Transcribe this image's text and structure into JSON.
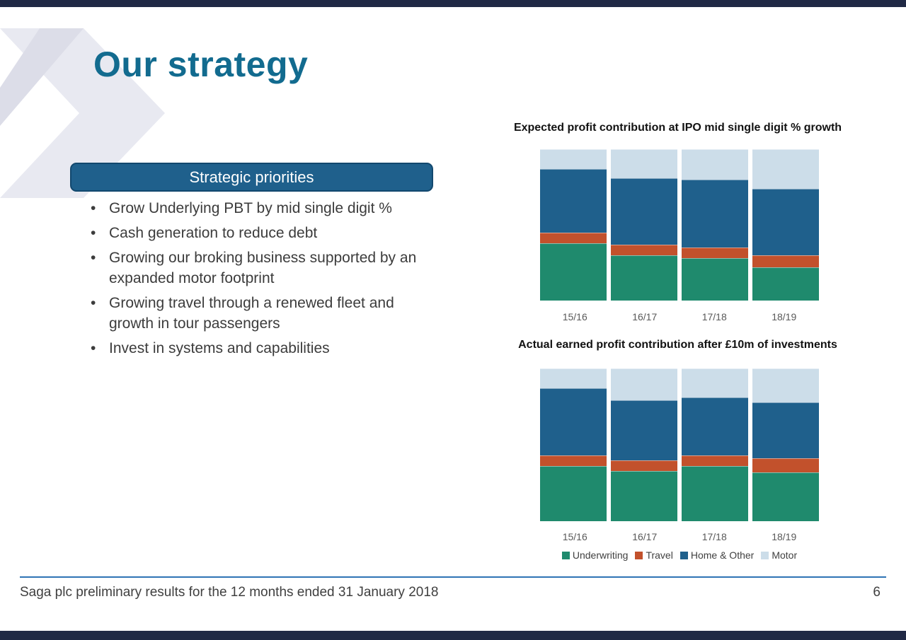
{
  "slide": {
    "title": "Our strategy",
    "footer": "Saga plc preliminary results for the 12 months ended 31 January 2018",
    "page_number": "6"
  },
  "strategic": {
    "header": "Strategic priorities",
    "bullets": [
      "Grow Underlying PBT by mid single digit %",
      "Cash generation to reduce debt",
      "Growing our broking business supported by an expanded motor footprint",
      "Growing travel through a renewed fleet and growth in tour passengers",
      "Invest in systems and capabilities"
    ]
  },
  "colors": {
    "border_navy": "#202945",
    "title_teal": "#126b8f",
    "header_box_blue": "#1f608c",
    "divider_blue": "#2e74b5"
  },
  "chart_data": [
    {
      "type": "bar",
      "stacked": true,
      "title": "Expected profit contribution at IPO mid single digit % growth",
      "categories": [
        "15/16",
        "16/17",
        "17/18",
        "18/19"
      ],
      "ylabel": "",
      "xlabel": "",
      "ylim": [
        0,
        100
      ],
      "grid": false,
      "legend_position": "none",
      "series": [
        {
          "name": "Underwriting",
          "color": "#1f8a6d",
          "values": [
            38,
            30,
            28,
            22
          ]
        },
        {
          "name": "Travel",
          "color": "#c2512c",
          "values": [
            7,
            7,
            7,
            8
          ]
        },
        {
          "name": "Home & Other",
          "color": "#1f608c",
          "values": [
            42,
            44,
            45,
            44
          ]
        },
        {
          "name": "Motor",
          "color": "#ccdde9",
          "values": [
            13,
            19,
            20,
            26
          ]
        }
      ]
    },
    {
      "type": "bar",
      "stacked": true,
      "title": "Actual earned profit contribution after £10m of investments",
      "categories": [
        "15/16",
        "16/17",
        "17/18",
        "18/19"
      ],
      "ylabel": "",
      "xlabel": "",
      "ylim": [
        0,
        100
      ],
      "grid": false,
      "legend_position": "bottom",
      "series": [
        {
          "name": "Underwriting",
          "color": "#1f8a6d",
          "values": [
            36,
            33,
            36,
            32
          ]
        },
        {
          "name": "Travel",
          "color": "#c2512c",
          "values": [
            7,
            7,
            7,
            9
          ]
        },
        {
          "name": "Home & Other",
          "color": "#1f608c",
          "values": [
            44,
            39,
            38,
            37
          ]
        },
        {
          "name": "Motor",
          "color": "#ccdde9",
          "values": [
            13,
            21,
            19,
            22
          ]
        }
      ]
    }
  ]
}
